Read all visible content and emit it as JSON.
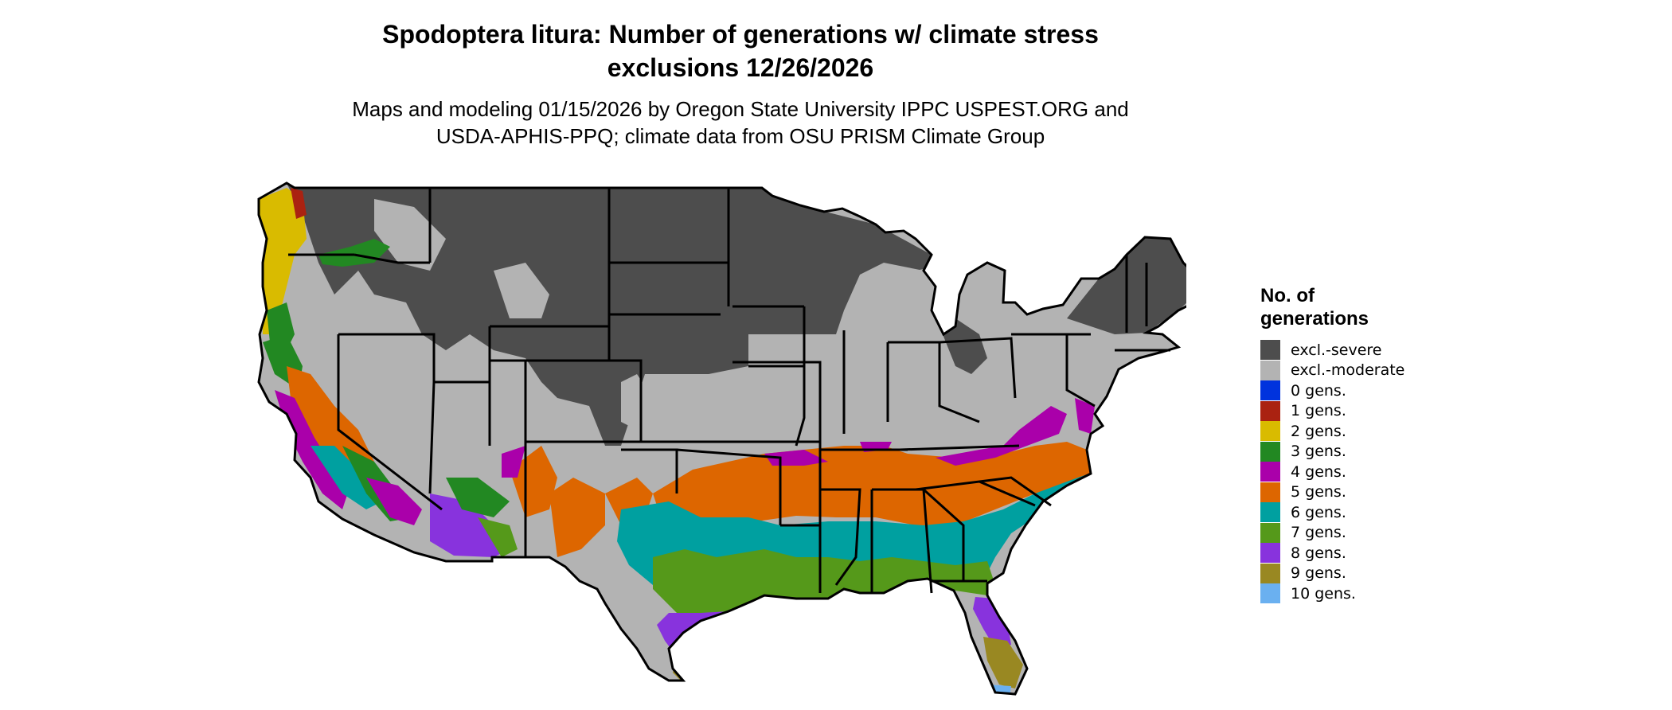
{
  "title_line1": "Spodoptera litura: Number of generations w/ climate stress",
  "title_line2": "exclusions 12/26/2026",
  "subtitle_line1": "Maps and modeling 01/15/2026 by Oregon State University IPPC USPEST.ORG and",
  "subtitle_line2": "USDA-APHIS-PPQ; climate data from OSU PRISM Climate Group",
  "legend": {
    "title_line1": "No. of",
    "title_line2": "generations",
    "items": [
      {
        "label": "excl.-severe",
        "color": "#4d4d4d"
      },
      {
        "label": "excl.-moderate",
        "color": "#b3b3b3"
      },
      {
        "label": "0 gens.",
        "color": "#0033dd"
      },
      {
        "label": "1 gens.",
        "color": "#aa2211"
      },
      {
        "label": "2 gens.",
        "color": "#d9bb00"
      },
      {
        "label": "3 gens.",
        "color": "#228822"
      },
      {
        "label": "4 gens.",
        "color": "#aa00aa"
      },
      {
        "label": "5 gens.",
        "color": "#dd6600"
      },
      {
        "label": "6 gens.",
        "color": "#00a0a0"
      },
      {
        "label": "7 gens.",
        "color": "#55991a"
      },
      {
        "label": "8 gens.",
        "color": "#8833dd"
      },
      {
        "label": "9 gens.",
        "color": "#998822"
      },
      {
        "label": "10 gens.",
        "color": "#6ab0f0"
      }
    ]
  }
}
